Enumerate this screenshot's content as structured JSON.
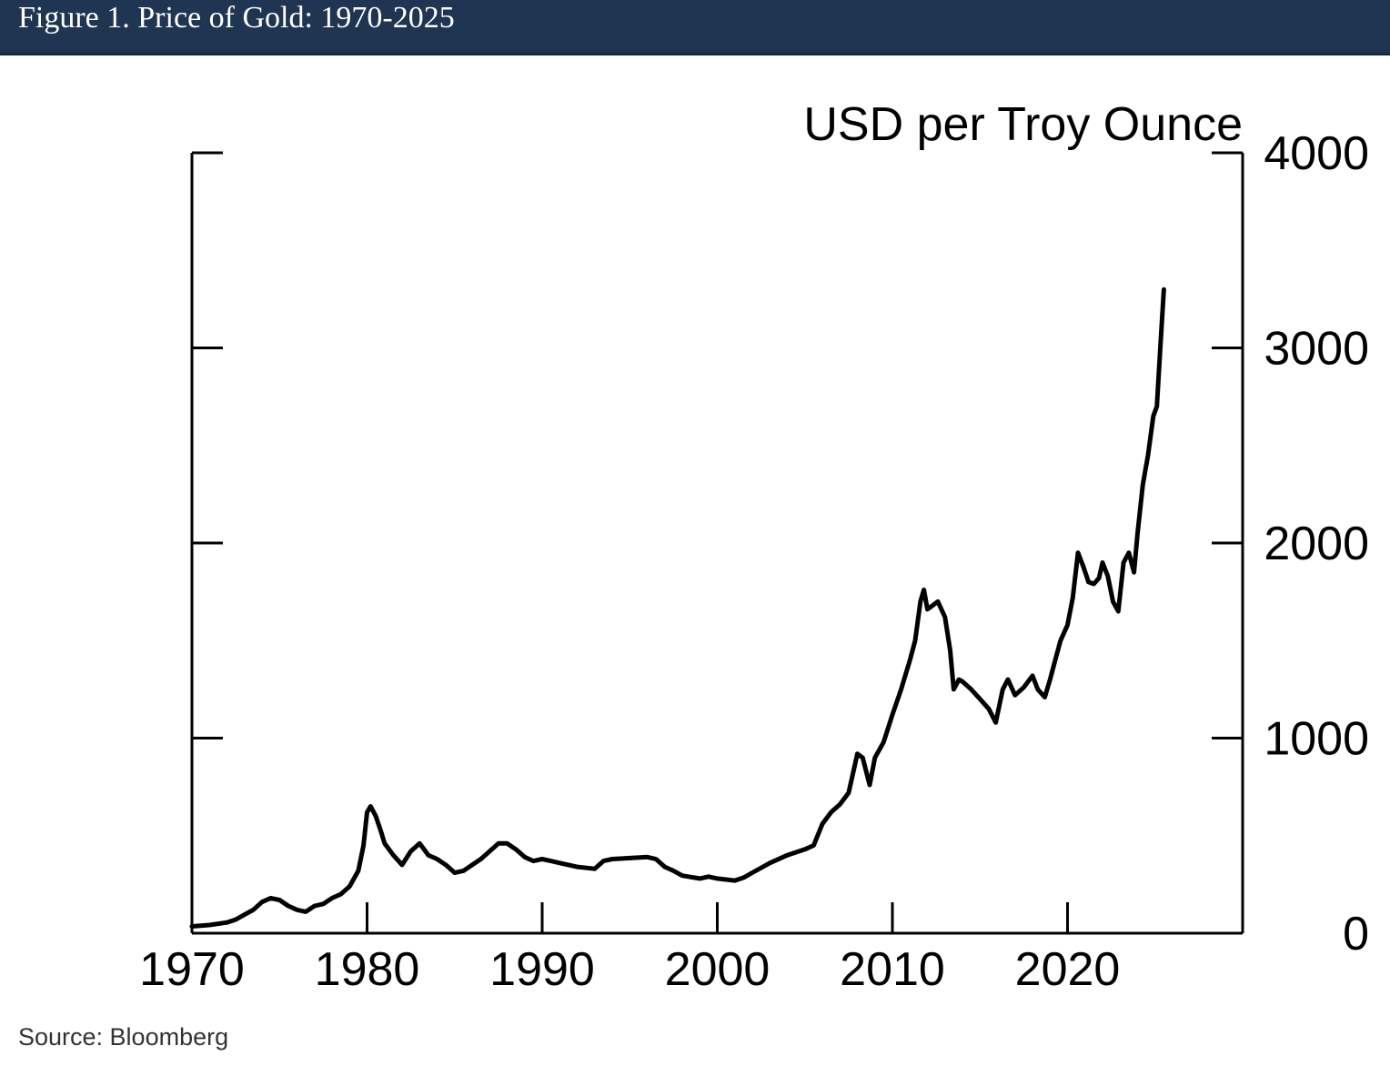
{
  "figure": {
    "title": "Figure 1. Price of Gold: 1970-2025",
    "source": "Source: Bloomberg"
  },
  "chart_data": {
    "type": "line",
    "ylabel": "USD per Troy Ounce",
    "xlim": [
      1970,
      2030
    ],
    "ylim": [
      0,
      4000
    ],
    "x_ticks": [
      1970,
      1980,
      1990,
      2000,
      2010,
      2020
    ],
    "x_tick_labels": [
      "1970",
      "1980",
      "1990",
      "2000",
      "2010",
      "2020"
    ],
    "y_ticks": [
      0,
      1000,
      2000,
      3000,
      4000
    ],
    "y_tick_labels": [
      "0",
      "1000",
      "2000",
      "3000",
      "4000"
    ],
    "y_axis_side": "right",
    "grid": false,
    "line_color": "#000000",
    "series": [
      {
        "x": [
          1970.0,
          1971.0,
          1972.0,
          1972.5,
          1973.0,
          1973.5,
          1974.0,
          1974.5,
          1975.0,
          1975.5,
          1976.0,
          1976.5,
          1977.0,
          1977.5,
          1978.0,
          1978.5,
          1979.0,
          1979.5,
          1979.8,
          1980.0,
          1980.2,
          1980.5,
          1980.8,
          1981.0,
          1981.5,
          1982.0,
          1982.5,
          1983.0,
          1983.5,
          1984.0,
          1984.5,
          1985.0,
          1985.5,
          1986.0,
          1986.5,
          1987.0,
          1987.5,
          1988.0,
          1988.5,
          1989.0,
          1989.5,
          1990.0,
          1990.5,
          1991.0,
          1992.0,
          1993.0,
          1993.5,
          1994.0,
          1995.0,
          1996.0,
          1996.5,
          1997.0,
          1997.5,
          1998.0,
          1999.0,
          1999.5,
          2000.0,
          2001.0,
          2001.5,
          2002.0,
          2003.0,
          2004.0,
          2005.0,
          2005.5,
          2006.0,
          2006.5,
          2007.0,
          2007.5,
          2008.0,
          2008.3,
          2008.7,
          2009.0,
          2009.5,
          2010.0,
          2010.5,
          2011.0,
          2011.3,
          2011.6,
          2011.8,
          2012.0,
          2012.3,
          2012.6,
          2013.0,
          2013.3,
          2013.5,
          2013.8,
          2014.0,
          2014.5,
          2015.0,
          2015.5,
          2015.9,
          2016.3,
          2016.6,
          2017.0,
          2017.5,
          2018.0,
          2018.3,
          2018.7,
          2019.0,
          2019.3,
          2019.6,
          2020.0,
          2020.3,
          2020.6,
          2020.9,
          2021.2,
          2021.5,
          2021.8,
          2022.0,
          2022.3,
          2022.6,
          2022.9,
          2023.2,
          2023.5,
          2023.8,
          2024.0,
          2024.3,
          2024.6,
          2024.9,
          2025.1,
          2025.3,
          2025.5
        ],
        "values": [
          35,
          42,
          55,
          70,
          95,
          120,
          160,
          180,
          170,
          140,
          120,
          110,
          140,
          150,
          180,
          200,
          240,
          320,
          450,
          620,
          650,
          600,
          520,
          460,
          400,
          350,
          420,
          460,
          400,
          380,
          350,
          310,
          320,
          350,
          380,
          420,
          460,
          460,
          430,
          390,
          370,
          380,
          370,
          360,
          340,
          330,
          370,
          380,
          385,
          390,
          380,
          340,
          320,
          295,
          280,
          290,
          280,
          270,
          285,
          310,
          360,
          400,
          430,
          450,
          560,
          620,
          660,
          720,
          920,
          900,
          760,
          900,
          980,
          1120,
          1250,
          1400,
          1500,
          1700,
          1760,
          1660,
          1680,
          1700,
          1620,
          1450,
          1250,
          1300,
          1290,
          1250,
          1200,
          1150,
          1080,
          1250,
          1300,
          1220,
          1260,
          1320,
          1250,
          1210,
          1300,
          1400,
          1500,
          1580,
          1720,
          1950,
          1880,
          1800,
          1790,
          1820,
          1900,
          1830,
          1700,
          1650,
          1900,
          1950,
          1850,
          2050,
          2300,
          2450,
          2650,
          2700,
          3000,
          3300
        ]
      }
    ]
  }
}
